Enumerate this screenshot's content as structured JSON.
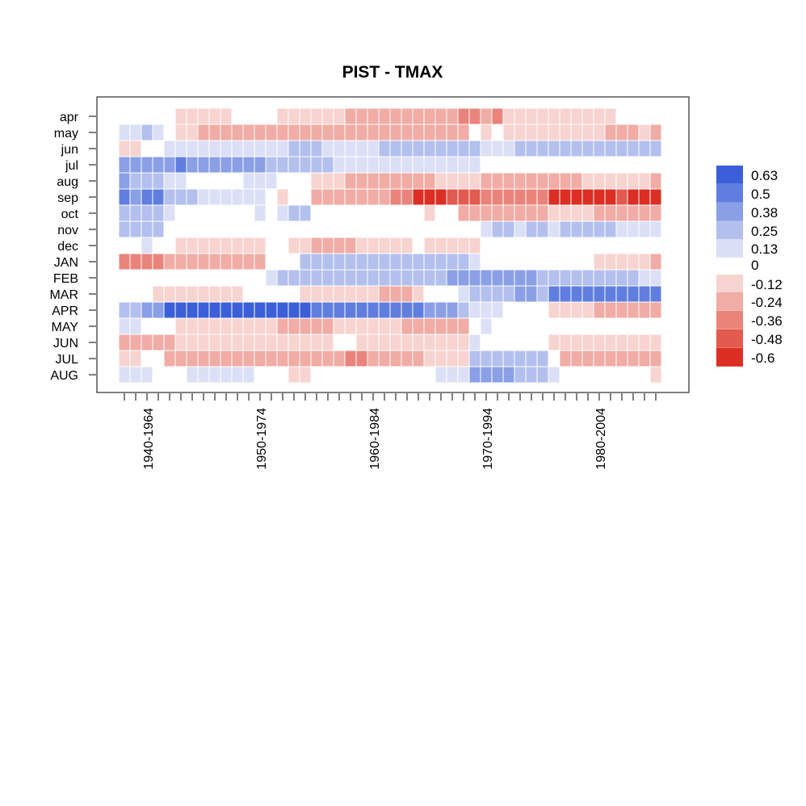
{
  "chart_data": {
    "type": "heatmap",
    "title": "PIST - TMAX",
    "rows": [
      "apr",
      "may",
      "jun",
      "jul",
      "aug",
      "sep",
      "oct",
      "nov",
      "dec",
      "JAN",
      "FEB",
      "MAR",
      "APR",
      "MAY",
      "JUN",
      "JUL",
      "AUG"
    ],
    "columns_start_year": 1940,
    "columns_count": 48,
    "window_label_years": 24,
    "x_tick_labels": [
      "1940-1964",
      "1950-1974",
      "1960-1984",
      "1970-1994",
      "1980-2004"
    ],
    "values": [
      [
        0.05,
        0.05,
        0.02,
        0.05,
        0.0,
        -0.1,
        -0.1,
        -0.1,
        -0.1,
        -0.1,
        -0.05,
        0.0,
        0.05,
        -0.05,
        -0.1,
        -0.15,
        -0.15,
        -0.15,
        -0.12,
        -0.15,
        -0.2,
        -0.2,
        -0.2,
        -0.2,
        -0.25,
        -0.25,
        -0.25,
        -0.25,
        -0.3,
        -0.3,
        -0.4,
        -0.35,
        -0.3,
        -0.35,
        -0.15,
        -0.1,
        -0.1,
        -0.1,
        -0.15,
        -0.15,
        -0.1,
        -0.1,
        -0.1,
        -0.1,
        -0.05,
        -0.05,
        0.0,
        -0.05
      ],
      [
        0.15,
        0.15,
        0.2,
        0.15,
        0.0,
        -0.1,
        -0.1,
        -0.2,
        -0.2,
        -0.2,
        -0.2,
        -0.2,
        -0.2,
        -0.2,
        -0.2,
        -0.25,
        -0.2,
        -0.25,
        -0.25,
        -0.25,
        -0.25,
        -0.25,
        -0.25,
        -0.25,
        -0.25,
        -0.25,
        -0.2,
        -0.2,
        -0.2,
        -0.2,
        -0.2,
        0.0,
        -0.15,
        -0.05,
        -0.1,
        -0.1,
        -0.12,
        -0.12,
        -0.12,
        -0.15,
        -0.12,
        -0.15,
        -0.15,
        -0.2,
        -0.2,
        -0.2,
        -0.15,
        -0.25
      ],
      [
        -0.1,
        -0.1,
        0.0,
        0.0,
        0.1,
        0.12,
        0.12,
        0.12,
        0.12,
        0.12,
        0.12,
        0.12,
        0.12,
        0.15,
        0.15,
        0.2,
        0.2,
        0.2,
        0.15,
        0.15,
        0.15,
        0.15,
        0.15,
        0.2,
        0.2,
        0.2,
        0.2,
        0.2,
        0.2,
        0.25,
        0.25,
        0.2,
        0.15,
        0.12,
        0.15,
        0.2,
        0.2,
        0.2,
        0.2,
        0.25,
        0.25,
        0.25,
        0.2,
        0.2,
        0.2,
        0.2,
        0.2,
        0.3
      ],
      [
        0.35,
        0.35,
        0.35,
        0.35,
        0.35,
        0.45,
        0.38,
        0.35,
        0.35,
        0.35,
        0.35,
        0.35,
        0.35,
        0.3,
        0.3,
        0.3,
        0.25,
        0.25,
        0.2,
        0.15,
        0.12,
        0.1,
        0.1,
        0.1,
        0.1,
        0.1,
        0.1,
        0.15,
        0.15,
        0.15,
        0.15,
        0.1,
        0.05,
        0.0,
        -0.05,
        0.0,
        0.0,
        -0.05,
        -0.05,
        0.0,
        0.0,
        -0.05,
        -0.05,
        -0.05,
        -0.05,
        -0.05,
        0.0,
        0.0
      ],
      [
        0.35,
        0.3,
        0.3,
        0.3,
        0.15,
        0.1,
        0.05,
        0.05,
        0.05,
        0.05,
        0.05,
        0.1,
        0.1,
        0.15,
        0.05,
        0.0,
        -0.05,
        -0.12,
        -0.15,
        -0.15,
        -0.2,
        -0.2,
        -0.2,
        -0.2,
        -0.2,
        -0.25,
        -0.2,
        -0.2,
        -0.15,
        -0.15,
        -0.15,
        -0.15,
        -0.25,
        -0.25,
        -0.25,
        -0.25,
        -0.25,
        -0.25,
        -0.2,
        -0.2,
        -0.2,
        -0.15,
        -0.15,
        -0.15,
        -0.15,
        -0.15,
        -0.15,
        -0.2
      ],
      [
        0.45,
        0.4,
        0.55,
        0.5,
        0.25,
        0.2,
        0.2,
        0.15,
        0.15,
        0.15,
        0.15,
        0.15,
        0.12,
        0.05,
        -0.1,
        -0.05,
        -0.05,
        -0.2,
        -0.25,
        -0.3,
        -0.3,
        -0.3,
        -0.3,
        -0.3,
        -0.35,
        -0.4,
        -0.55,
        -0.55,
        -0.55,
        -0.5,
        -0.5,
        -0.5,
        -0.4,
        -0.4,
        -0.4,
        -0.4,
        -0.4,
        -0.4,
        -0.6,
        -0.6,
        -0.55,
        -0.55,
        -0.55,
        -0.55,
        -0.5,
        -0.55,
        -0.55,
        -0.6
      ],
      [
        0.3,
        0.3,
        0.2,
        0.2,
        0.1,
        0.05,
        0.05,
        0.05,
        0.05,
        0.05,
        0.05,
        0.05,
        0.15,
        0.05,
        0.1,
        0.25,
        0.2,
        0.05,
        0.05,
        0.0,
        0.0,
        0.0,
        0.05,
        0.05,
        0.05,
        0.0,
        -0.05,
        -0.15,
        -0.05,
        0.0,
        -0.2,
        -0.2,
        -0.25,
        -0.25,
        -0.25,
        -0.25,
        -0.25,
        -0.25,
        -0.1,
        -0.1,
        -0.12,
        -0.15,
        -0.2,
        -0.2,
        -0.2,
        -0.2,
        -0.2,
        -0.2
      ],
      [
        0.3,
        0.3,
        0.2,
        0.2,
        0.05,
        0.0,
        0.0,
        0.0,
        0.05,
        0.05,
        0.05,
        0.05,
        0.05,
        0.0,
        0.0,
        0.05,
        0.05,
        0.0,
        -0.05,
        -0.05,
        -0.05,
        0.0,
        0.0,
        0.0,
        -0.05,
        -0.05,
        0.05,
        -0.05,
        -0.05,
        0.0,
        0.05,
        0.05,
        0.1,
        0.2,
        0.3,
        0.15,
        0.2,
        0.25,
        0.1,
        0.2,
        0.2,
        0.2,
        0.2,
        0.2,
        0.15,
        0.15,
        0.12,
        0.1
      ],
      [
        0.0,
        -0.05,
        0.1,
        0.05,
        0.0,
        -0.1,
        -0.1,
        -0.1,
        -0.1,
        -0.1,
        -0.1,
        -0.1,
        -0.1,
        -0.05,
        -0.05,
        -0.1,
        -0.1,
        -0.2,
        -0.25,
        -0.25,
        -0.2,
        -0.15,
        -0.15,
        -0.1,
        -0.1,
        -0.1,
        -0.05,
        -0.1,
        -0.15,
        -0.1,
        -0.1,
        -0.1,
        -0.05,
        0.0,
        0.05,
        0.05,
        0.05,
        0.05,
        -0.05,
        0.0,
        0.0,
        0.0,
        0.0,
        0.05,
        0.05,
        0.05,
        0.05,
        0.05
      ],
      [
        -0.35,
        -0.35,
        -0.35,
        -0.35,
        -0.25,
        -0.2,
        -0.2,
        -0.2,
        -0.2,
        -0.2,
        -0.2,
        -0.25,
        -0.2,
        -0.05,
        0.0,
        -0.05,
        0.2,
        0.25,
        0.25,
        0.25,
        0.25,
        0.25,
        0.25,
        0.25,
        0.25,
        0.25,
        0.25,
        0.2,
        0.2,
        0.2,
        0.2,
        0.15,
        0.0,
        0.0,
        0.0,
        0.0,
        0.0,
        0.0,
        -0.05,
        -0.05,
        -0.05,
        -0.05,
        -0.1,
        -0.15,
        -0.1,
        -0.15,
        -0.15,
        -0.2
      ],
      [
        0.0,
        0.0,
        0.0,
        0.0,
        0.0,
        -0.05,
        -0.05,
        -0.05,
        -0.05,
        -0.05,
        -0.05,
        -0.05,
        0.0,
        0.15,
        0.2,
        0.2,
        0.25,
        0.25,
        0.25,
        0.25,
        0.25,
        0.25,
        0.25,
        0.25,
        0.25,
        0.25,
        0.3,
        0.3,
        0.3,
        0.35,
        0.35,
        0.4,
        0.4,
        0.4,
        0.4,
        0.35,
        0.35,
        0.3,
        0.25,
        0.25,
        0.25,
        0.25,
        0.25,
        0.2,
        0.2,
        0.2,
        0.15,
        0.15
      ],
      [
        0.0,
        0.0,
        -0.05,
        -0.1,
        -0.15,
        -0.15,
        -0.1,
        -0.15,
        -0.15,
        -0.15,
        -0.1,
        -0.05,
        -0.05,
        -0.05,
        -0.05,
        0.0,
        -0.1,
        -0.15,
        -0.15,
        -0.15,
        -0.15,
        -0.15,
        -0.15,
        -0.2,
        -0.2,
        -0.2,
        -0.15,
        -0.05,
        0.0,
        0.05,
        0.15,
        0.2,
        0.25,
        0.3,
        0.3,
        0.35,
        0.35,
        0.3,
        0.45,
        0.45,
        0.45,
        0.5,
        0.5,
        0.5,
        0.5,
        0.5,
        0.5,
        0.55
      ],
      [
        0.3,
        0.3,
        0.4,
        0.4,
        0.6,
        0.6,
        0.6,
        0.6,
        0.6,
        0.6,
        0.6,
        0.6,
        0.6,
        0.6,
        0.6,
        0.6,
        0.6,
        0.55,
        0.5,
        0.5,
        0.5,
        0.5,
        0.5,
        0.45,
        0.45,
        0.45,
        0.45,
        0.4,
        0.4,
        0.4,
        0.2,
        0.15,
        0.1,
        0.1,
        0.05,
        0.05,
        0.0,
        -0.05,
        -0.1,
        -0.15,
        -0.15,
        -0.15,
        -0.2,
        -0.2,
        -0.2,
        -0.2,
        -0.2,
        -0.25
      ],
      [
        0.1,
        0.1,
        0.0,
        0.0,
        -0.05,
        -0.1,
        -0.1,
        -0.12,
        -0.15,
        -0.15,
        -0.15,
        -0.15,
        -0.15,
        -0.15,
        -0.2,
        -0.25,
        -0.3,
        -0.2,
        -0.2,
        -0.15,
        -0.15,
        -0.1,
        -0.15,
        -0.1,
        -0.15,
        -0.2,
        -0.2,
        -0.25,
        -0.25,
        -0.25,
        -0.25,
        0.0,
        0.1,
        0.0,
        0.05,
        0.0,
        -0.05,
        -0.05,
        -0.05,
        0.0,
        0.0,
        0.05,
        0.05,
        0.05,
        0.05,
        0.05,
        0.05,
        0.0
      ],
      [
        -0.2,
        -0.2,
        -0.25,
        -0.25,
        -0.2,
        -0.15,
        -0.15,
        -0.15,
        -0.15,
        -0.15,
        -0.15,
        -0.15,
        -0.15,
        -0.15,
        -0.15,
        -0.15,
        -0.15,
        -0.1,
        -0.1,
        -0.05,
        0.0,
        -0.1,
        -0.1,
        -0.15,
        -0.15,
        -0.15,
        -0.15,
        -0.15,
        -0.15,
        -0.1,
        -0.1,
        0.1,
        0.05,
        0.05,
        0.05,
        0.05,
        0.05,
        0.05,
        -0.1,
        -0.1,
        -0.1,
        -0.1,
        -0.1,
        -0.1,
        -0.1,
        -0.12,
        -0.12,
        -0.15
      ],
      [
        -0.12,
        -0.12,
        0.0,
        0.0,
        -0.2,
        -0.25,
        -0.25,
        -0.25,
        -0.25,
        -0.25,
        -0.25,
        -0.25,
        -0.25,
        -0.3,
        -0.3,
        -0.3,
        -0.25,
        -0.25,
        -0.3,
        -0.3,
        -0.35,
        -0.35,
        -0.3,
        -0.3,
        -0.25,
        -0.25,
        -0.2,
        -0.15,
        -0.15,
        -0.1,
        -0.1,
        0.2,
        0.25,
        0.25,
        0.25,
        0.25,
        0.25,
        0.2,
        0.0,
        -0.2,
        -0.2,
        -0.25,
        -0.25,
        -0.25,
        -0.25,
        -0.25,
        -0.25,
        -0.3
      ],
      [
        0.1,
        0.1,
        0.1,
        0.05,
        0.0,
        0.0,
        0.1,
        0.1,
        0.1,
        0.1,
        0.1,
        0.1,
        0.05,
        0.0,
        -0.05,
        -0.1,
        -0.15,
        -0.05,
        -0.05,
        -0.05,
        -0.05,
        0.0,
        0.0,
        0.0,
        0.05,
        0.05,
        0.05,
        0.05,
        0.1,
        0.1,
        0.15,
        0.35,
        0.35,
        0.35,
        0.35,
        0.3,
        0.3,
        0.25,
        0.1,
        0.05,
        0.05,
        0.05,
        0.05,
        0.0,
        -0.05,
        -0.05,
        -0.05,
        -0.1
      ]
    ],
    "legend": {
      "labels": [
        "0.63",
        "0.5",
        "0.38",
        "0.25",
        "0.13",
        "0",
        "-0.12",
        "-0.24",
        "-0.36",
        "-0.48",
        "-0.6"
      ],
      "colors": [
        "#3a5fd8",
        "#5f7ee0",
        "#8a9fe6",
        "#b3c0ee",
        "#dbe0f7",
        "#ffffff",
        "#f7d4d0",
        "#f0aca5",
        "#ea847b",
        "#e35a4e",
        "#dc2e22"
      ]
    }
  }
}
